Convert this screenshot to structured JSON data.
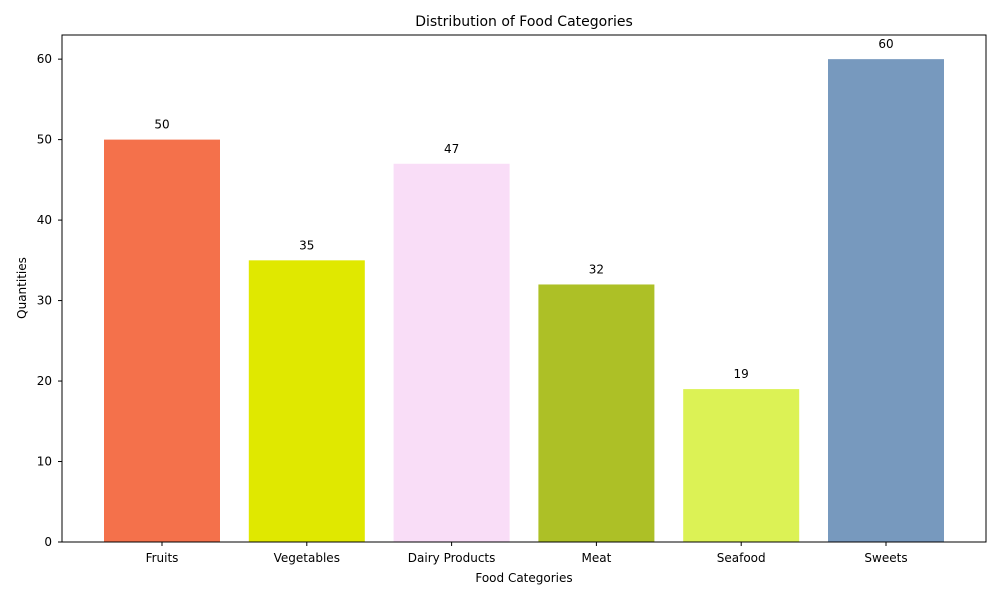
{
  "chart_data": {
    "type": "bar",
    "title": "Distribution of Food Categories",
    "xlabel": "Food Categories",
    "ylabel": "Quantities",
    "categories": [
      "Fruits",
      "Vegetables",
      "Dairy Products",
      "Meat",
      "Seafood",
      "Sweets"
    ],
    "values": [
      50,
      35,
      47,
      32,
      19,
      60
    ],
    "colors": [
      "#f4714b",
      "#e0e800",
      "#f9ddf7",
      "#adc026",
      "#dcf255",
      "#7799be"
    ],
    "ylim": [
      0,
      63
    ],
    "yticks": [
      0,
      10,
      20,
      30,
      40,
      50,
      60
    ],
    "grid": false
  }
}
